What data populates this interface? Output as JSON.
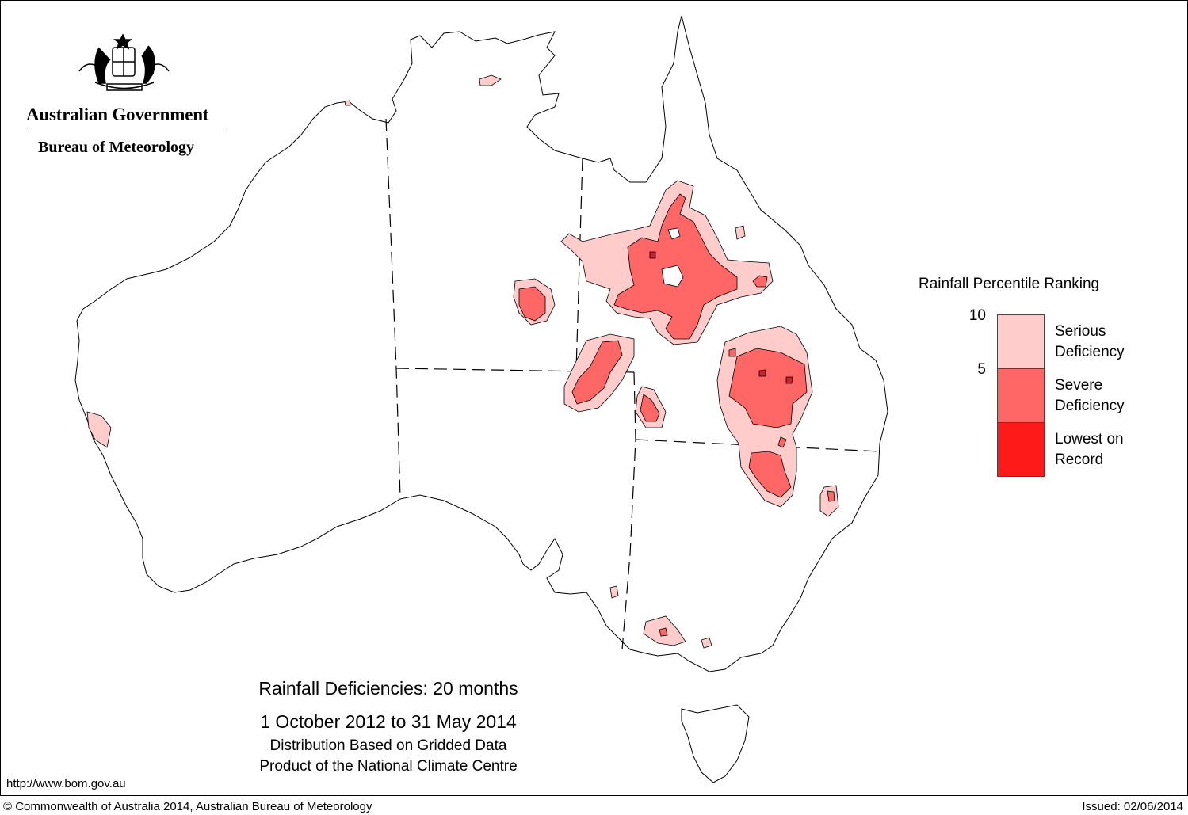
{
  "header": {
    "org_name": "Australian Government",
    "agency_name": "Bureau of Meteorology",
    "crest": "commonwealth-coat-of-arms"
  },
  "map": {
    "title": "Rainfall Deficiencies: 20 months",
    "period": "1 October 2012 to 31 May 2014",
    "subtitle_1": "Distribution Based on Gridded Data",
    "subtitle_2": "Product of the National Climate Centre",
    "region": "Australia"
  },
  "legend": {
    "title": "Rainfall Percentile Ranking",
    "ticks": [
      "10",
      "5"
    ],
    "categories": [
      {
        "label_1": "Serious",
        "label_2": "Deficiency",
        "color": "#ffcccc"
      },
      {
        "label_1": "Severe",
        "label_2": "Deficiency",
        "color": "#ff6666"
      },
      {
        "label_1": "Lowest on",
        "label_2": "Record",
        "color": "#ff1a1a"
      }
    ]
  },
  "footer": {
    "url": "http://www.bom.gov.au",
    "copyright": "© Commonwealth of Australia 2014, Australian Bureau of Meteorology",
    "issued": "Issued: 02/06/2014"
  }
}
